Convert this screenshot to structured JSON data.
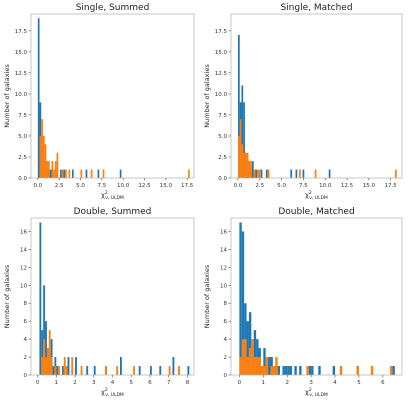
{
  "chart_data": [
    {
      "type": "histogram",
      "title": "Single, Summed",
      "xlabel": "χ²ν, ULDM",
      "ylabel": "Number of galaxies",
      "xlim": [
        -0.8,
        18.3
      ],
      "ylim": [
        0,
        19.5
      ],
      "xticks": [
        "0.0",
        "2.5",
        "5.0",
        "7.5",
        "10.0",
        "12.5",
        "15.0",
        "17.5"
      ],
      "yticks": [
        "0.0",
        "2.5",
        "5.0",
        "7.5",
        "10.0",
        "12.5",
        "15.0",
        "17.5"
      ],
      "series": [
        {
          "color": "#1f77b4",
          "bins": [
            [
              0.0,
              0.2,
              19
            ],
            [
              0.2,
              0.4,
              9
            ],
            [
              0.4,
              0.6,
              5
            ],
            [
              0.6,
              0.8,
              4
            ],
            [
              0.8,
              1.0,
              2
            ],
            [
              1.0,
              1.2,
              2
            ],
            [
              1.2,
              1.4,
              1
            ],
            [
              1.4,
              1.6,
              1
            ],
            [
              2.0,
              2.2,
              1
            ],
            [
              2.6,
              2.8,
              1
            ],
            [
              3.0,
              3.2,
              1
            ],
            [
              4.0,
              4.2,
              1
            ],
            [
              5.6,
              5.8,
              1
            ],
            [
              7.0,
              7.2,
              1
            ],
            [
              9.6,
              9.8,
              1
            ]
          ]
        },
        {
          "color": "#ff7f0e",
          "bins": [
            [
              0.2,
              0.4,
              5
            ],
            [
              0.4,
              0.6,
              7
            ],
            [
              0.6,
              0.8,
              5
            ],
            [
              0.8,
              1.0,
              4
            ],
            [
              1.0,
              1.2,
              2
            ],
            [
              1.2,
              1.4,
              2
            ],
            [
              1.6,
              1.8,
              2
            ],
            [
              1.8,
              2.0,
              1
            ],
            [
              2.0,
              2.2,
              2
            ],
            [
              2.2,
              2.4,
              3
            ],
            [
              2.8,
              3.0,
              1
            ],
            [
              3.2,
              3.4,
              1
            ],
            [
              3.6,
              3.8,
              1
            ],
            [
              5.0,
              5.2,
              1
            ],
            [
              6.2,
              6.4,
              1
            ],
            [
              7.6,
              7.8,
              1
            ],
            [
              17.6,
              17.8,
              1
            ]
          ]
        }
      ]
    },
    {
      "type": "histogram",
      "title": "Single, Matched",
      "xlabel": "χ²ν, ULDM",
      "ylabel": "Number of galaxies",
      "xlim": [
        -0.8,
        18.8
      ],
      "ylim": [
        0,
        19.5
      ],
      "xticks": [
        "0.0",
        "2.5",
        "5.0",
        "7.5",
        "10.0",
        "12.5",
        "15.0",
        "17.5"
      ],
      "yticks": [
        "0.0",
        "2.5",
        "5.0",
        "7.5",
        "10.0",
        "12.5",
        "15.0",
        "17.5"
      ],
      "series": [
        {
          "color": "#1f77b4",
          "bins": [
            [
              0.0,
              0.2,
              17
            ],
            [
              0.2,
              0.4,
              9
            ],
            [
              0.4,
              0.6,
              11
            ],
            [
              0.6,
              0.8,
              9
            ],
            [
              0.8,
              1.0,
              3
            ],
            [
              1.0,
              1.2,
              2
            ],
            [
              1.2,
              1.4,
              2
            ],
            [
              1.4,
              1.6,
              1
            ],
            [
              1.6,
              1.8,
              2
            ],
            [
              2.0,
              2.2,
              1
            ],
            [
              2.6,
              2.8,
              1
            ],
            [
              3.2,
              3.4,
              1
            ],
            [
              6.0,
              6.2,
              1
            ],
            [
              6.6,
              6.8,
              1
            ],
            [
              7.4,
              7.6,
              1
            ],
            [
              10.4,
              10.6,
              1
            ]
          ]
        },
        {
          "color": "#ff7f0e",
          "bins": [
            [
              0.0,
              0.2,
              5
            ],
            [
              0.2,
              0.4,
              7
            ],
            [
              0.4,
              0.6,
              4
            ],
            [
              0.6,
              0.8,
              3
            ],
            [
              0.8,
              1.0,
              3
            ],
            [
              1.0,
              1.2,
              3
            ],
            [
              1.2,
              1.4,
              2
            ],
            [
              1.4,
              1.6,
              2
            ],
            [
              1.8,
              2.0,
              1
            ],
            [
              2.2,
              2.4,
              1
            ],
            [
              2.4,
              2.6,
              1
            ],
            [
              3.4,
              3.6,
              1
            ],
            [
              7.0,
              7.2,
              1
            ],
            [
              8.8,
              9.0,
              1
            ],
            [
              18.0,
              18.2,
              1
            ]
          ]
        }
      ]
    },
    {
      "type": "histogram",
      "title": "Double, Summed",
      "xlabel": "χ²ν, ULDM",
      "ylabel": "Number of galaxies",
      "xlim": [
        -0.35,
        8.35
      ],
      "ylim": [
        0,
        17.5
      ],
      "xticks": [
        "0",
        "1",
        "2",
        "3",
        "4",
        "5",
        "6",
        "7",
        "8"
      ],
      "yticks": [
        "0",
        "2",
        "4",
        "6",
        "8",
        "10",
        "12",
        "14",
        "16"
      ],
      "series": [
        {
          "color": "#1f77b4",
          "bins": [
            [
              0.1,
              0.2,
              17
            ],
            [
              0.2,
              0.3,
              5
            ],
            [
              0.3,
              0.4,
              10
            ],
            [
              0.4,
              0.5,
              6
            ],
            [
              0.5,
              0.6,
              3
            ],
            [
              0.6,
              0.7,
              2
            ],
            [
              0.7,
              0.8,
              4
            ],
            [
              0.8,
              0.9,
              1
            ],
            [
              0.9,
              1.0,
              2
            ],
            [
              1.0,
              1.1,
              1
            ],
            [
              1.3,
              1.4,
              1
            ],
            [
              1.6,
              1.7,
              2
            ],
            [
              2.0,
              2.1,
              2
            ],
            [
              2.6,
              2.7,
              1
            ],
            [
              3.0,
              3.1,
              1
            ],
            [
              3.6,
              3.7,
              1
            ],
            [
              4.4,
              4.5,
              2
            ],
            [
              5.4,
              5.5,
              1
            ],
            [
              6.0,
              6.1,
              1
            ],
            [
              6.5,
              6.6,
              1
            ],
            [
              7.2,
              7.3,
              2
            ],
            [
              8.0,
              8.1,
              1
            ]
          ]
        },
        {
          "color": "#ff7f0e",
          "bins": [
            [
              0.2,
              0.3,
              2
            ],
            [
              0.3,
              0.4,
              4
            ],
            [
              0.4,
              0.5,
              2
            ],
            [
              0.5,
              0.6,
              3
            ],
            [
              0.6,
              0.7,
              5
            ],
            [
              0.7,
              0.8,
              2
            ],
            [
              0.9,
              1.0,
              1
            ],
            [
              1.1,
              1.2,
              1
            ],
            [
              1.4,
              1.5,
              2
            ],
            [
              1.5,
              1.6,
              1
            ],
            [
              1.8,
              1.9,
              2
            ],
            [
              2.3,
              2.4,
              1
            ],
            [
              3.6,
              3.7,
              1
            ],
            [
              4.2,
              4.3,
              1
            ],
            [
              5.1,
              5.2,
              1
            ],
            [
              7.0,
              7.1,
              1
            ],
            [
              7.5,
              7.6,
              1
            ]
          ]
        }
      ]
    },
    {
      "type": "histogram",
      "title": "Double, Matched",
      "xlabel": "χ²ν, ULDM",
      "ylabel": "Number of galaxies",
      "xlim": [
        -0.35,
        6.8
      ],
      "ylim": [
        0,
        17.5
      ],
      "xticks": [
        "0",
        "1",
        "2",
        "3",
        "4",
        "5",
        "6"
      ],
      "yticks": [
        "0",
        "2",
        "4",
        "6",
        "8",
        "10",
        "12",
        "14",
        "16"
      ],
      "series": [
        {
          "color": "#1f77b4",
          "bins": [
            [
              0.0,
              0.1,
              17
            ],
            [
              0.1,
              0.2,
              16
            ],
            [
              0.2,
              0.3,
              8
            ],
            [
              0.3,
              0.4,
              6
            ],
            [
              0.4,
              0.5,
              7
            ],
            [
              0.5,
              0.6,
              4
            ],
            [
              0.6,
              0.7,
              5
            ],
            [
              0.7,
              0.8,
              4
            ],
            [
              0.8,
              0.9,
              3
            ],
            [
              0.9,
              1.0,
              1
            ],
            [
              1.0,
              1.1,
              3
            ],
            [
              1.1,
              1.2,
              1
            ],
            [
              1.2,
              1.3,
              2
            ],
            [
              1.3,
              1.4,
              2
            ],
            [
              1.4,
              1.5,
              1
            ],
            [
              1.5,
              1.6,
              1
            ],
            [
              1.6,
              1.7,
              1
            ],
            [
              1.8,
              1.9,
              1
            ],
            [
              1.9,
              2.0,
              1
            ],
            [
              2.0,
              2.1,
              1
            ],
            [
              2.1,
              2.2,
              1
            ],
            [
              2.3,
              2.4,
              1
            ],
            [
              2.5,
              2.6,
              1
            ],
            [
              2.9,
              3.0,
              1
            ],
            [
              3.0,
              3.1,
              1
            ],
            [
              3.3,
              3.4,
              1
            ],
            [
              3.9,
              4.0,
              1
            ],
            [
              4.9,
              5.0,
              1
            ],
            [
              6.4,
              6.5,
              1
            ]
          ]
        },
        {
          "color": "#ff7f0e",
          "bins": [
            [
              0.0,
              0.1,
              2
            ],
            [
              0.1,
              0.2,
              4
            ],
            [
              0.2,
              0.3,
              4
            ],
            [
              0.3,
              0.4,
              2
            ],
            [
              0.4,
              0.5,
              3
            ],
            [
              0.5,
              0.6,
              4
            ],
            [
              0.6,
              0.7,
              2
            ],
            [
              0.7,
              0.8,
              2
            ],
            [
              0.8,
              0.9,
              2
            ],
            [
              0.9,
              1.0,
              1
            ],
            [
              1.0,
              1.1,
              1
            ],
            [
              1.1,
              1.2,
              2
            ],
            [
              1.3,
              1.4,
              1
            ],
            [
              1.4,
              1.5,
              1
            ],
            [
              1.5,
              1.6,
              2
            ],
            [
              2.8,
              2.9,
              1
            ],
            [
              4.2,
              4.3,
              1
            ],
            [
              4.9,
              5.0,
              1
            ],
            [
              5.5,
              5.6,
              1
            ],
            [
              6.3,
              6.4,
              1
            ]
          ]
        }
      ]
    }
  ]
}
